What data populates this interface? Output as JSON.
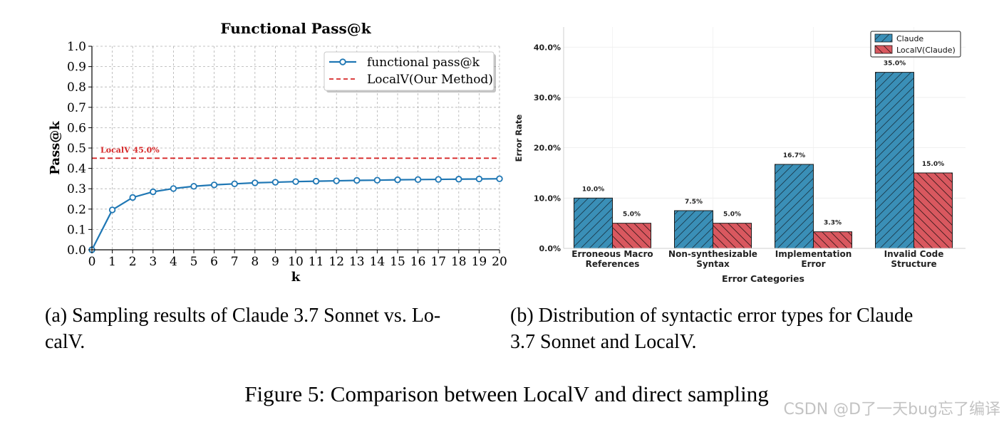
{
  "chart_data": [
    {
      "type": "line",
      "title": "Functional Pass@k",
      "xlabel": "k",
      "ylabel": "Pass@k",
      "x": [
        0,
        1,
        2,
        3,
        4,
        5,
        6,
        7,
        8,
        9,
        10,
        11,
        12,
        13,
        14,
        15,
        16,
        17,
        18,
        19,
        20
      ],
      "xticks": [
        "0",
        "1",
        "2",
        "3",
        "4",
        "5",
        "6",
        "7",
        "8",
        "9",
        "10",
        "11",
        "12",
        "13",
        "14",
        "15",
        "16",
        "17",
        "18",
        "19",
        "20"
      ],
      "yticks": [
        "0.0",
        "0.1",
        "0.2",
        "0.3",
        "0.4",
        "0.5",
        "0.6",
        "0.7",
        "0.8",
        "0.9",
        "1.0"
      ],
      "xlim": [
        0,
        20
      ],
      "ylim": [
        0,
        1.0
      ],
      "grid": true,
      "legend_position": "top-right",
      "series": [
        {
          "name": "functional pass@k",
          "color": "#1f77b4",
          "marker": "circle",
          "values": [
            0.0,
            0.196,
            0.257,
            0.285,
            0.301,
            0.312,
            0.319,
            0.324,
            0.329,
            0.332,
            0.335,
            0.337,
            0.339,
            0.341,
            0.342,
            0.344,
            0.345,
            0.346,
            0.347,
            0.348,
            0.349
          ]
        }
      ],
      "reference_line": {
        "name": "LocalV(Our Method)",
        "value": 0.45,
        "color": "#d62728",
        "style": "dashed",
        "annotation": "LocalV 45.0%"
      }
    },
    {
      "type": "bar",
      "xlabel": "Error Categories",
      "ylabel": "Error Rate",
      "categories": [
        [
          "Erroneous Macro",
          "References"
        ],
        [
          "Non-synthesizable",
          "Syntax"
        ],
        [
          "Implementation",
          "Error"
        ],
        [
          "Invalid Code",
          "Structure"
        ]
      ],
      "yticks": [
        "0.0%",
        "10.0%",
        "20.0%",
        "30.0%",
        "40.0%"
      ],
      "ylim": [
        0,
        44
      ],
      "grid": true,
      "legend_position": "top-right",
      "series": [
        {
          "name": "Claude",
          "color": "#3a8fb7",
          "hatch": "/",
          "values": [
            10.0,
            7.5,
            16.7,
            35.0
          ],
          "labels": [
            "10.0%",
            "7.5%",
            "16.7%",
            "35.0%"
          ]
        },
        {
          "name": "LocalV(Claude)",
          "color": "#d9585f",
          "hatch": "\\",
          "values": [
            5.0,
            5.0,
            3.3,
            15.0
          ],
          "labels": [
            "5.0%",
            "5.0%",
            "3.3%",
            "15.0%"
          ]
        }
      ]
    }
  ],
  "captions": {
    "left_line1": "(a) Sampling results of Claude 3.7 Sonnet vs. Lo-",
    "left_line2": "calV.",
    "right_line1": "(b) Distribution of syntactic error types for Claude",
    "right_line2": "3.7 Sonnet and LocalV.",
    "figure": "Figure 5: Comparison between LocalV and direct sampling"
  },
  "watermark": "CSDN @D了一天bug忘了编译"
}
